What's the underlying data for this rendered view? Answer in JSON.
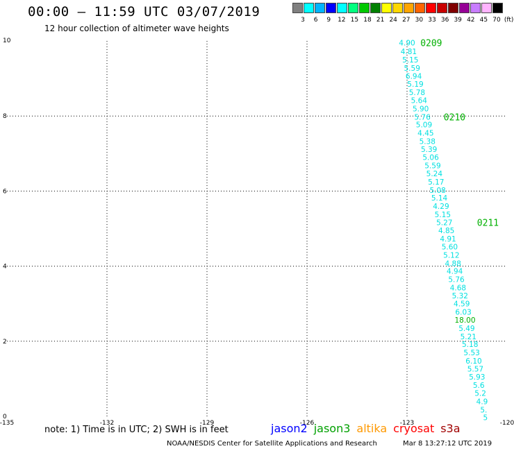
{
  "title": "00:00 – 11:59 UTC 03/07/2019",
  "subtitle": "12 hour collection of altimeter wave heights",
  "color_scale": {
    "unit": "(ft)",
    "colors": [
      "#808080",
      "#00ffff",
      "#00b4ff",
      "#0000ff",
      "#00ffff",
      "#00ff7f",
      "#00c800",
      "#008000",
      "#ffff00",
      "#ffd700",
      "#ffa500",
      "#ff6400",
      "#ff0000",
      "#c80000",
      "#800000",
      "#960096",
      "#c87dff",
      "#ffb4ff",
      "#000000"
    ],
    "labels": [
      "3",
      "6",
      "9",
      "12",
      "15",
      "18",
      "21",
      "24",
      "27",
      "30",
      "33",
      "36",
      "39",
      "42",
      "45",
      "70"
    ]
  },
  "axes": {
    "x_ticks": [
      "-135",
      "-132",
      "-129",
      "-126",
      "-123",
      "-120"
    ],
    "y_ticks": [
      "0",
      "2",
      "4",
      "6",
      "8",
      "10"
    ],
    "x_range": [
      -135,
      -120
    ],
    "y_range": [
      0,
      10
    ]
  },
  "track": {
    "color": "#00e0e0",
    "highlight_color": "#00b000",
    "points": [
      {
        "lat": 9.95,
        "lon": -123.0,
        "v": "4.90"
      },
      {
        "lat": 9.72,
        "lon": -122.95,
        "v": "4.81"
      },
      {
        "lat": 9.5,
        "lon": -122.9,
        "v": "5.15"
      },
      {
        "lat": 9.28,
        "lon": -122.85,
        "v": "5.59"
      },
      {
        "lat": 9.07,
        "lon": -122.8,
        "v": "6.94"
      },
      {
        "lat": 8.85,
        "lon": -122.75,
        "v": "5.19"
      },
      {
        "lat": 8.63,
        "lon": -122.7,
        "v": "5.78"
      },
      {
        "lat": 8.42,
        "lon": -122.64,
        "v": "5.64"
      },
      {
        "lat": 8.2,
        "lon": -122.59,
        "v": "5.90"
      },
      {
        "lat": 7.98,
        "lon": -122.54,
        "v": "5.76"
      },
      {
        "lat": 7.77,
        "lon": -122.49,
        "v": "5.09"
      },
      {
        "lat": 7.55,
        "lon": -122.44,
        "v": "4.45"
      },
      {
        "lat": 7.33,
        "lon": -122.39,
        "v": "5.38"
      },
      {
        "lat": 7.12,
        "lon": -122.34,
        "v": "5.39"
      },
      {
        "lat": 6.9,
        "lon": -122.29,
        "v": "5.06"
      },
      {
        "lat": 6.68,
        "lon": -122.23,
        "v": "5.59"
      },
      {
        "lat": 6.47,
        "lon": -122.18,
        "v": "5.24"
      },
      {
        "lat": 6.25,
        "lon": -122.13,
        "v": "5.17"
      },
      {
        "lat": 6.03,
        "lon": -122.08,
        "v": "5.08"
      },
      {
        "lat": 5.82,
        "lon": -122.03,
        "v": "5.14"
      },
      {
        "lat": 5.6,
        "lon": -121.98,
        "v": "4.29"
      },
      {
        "lat": 5.38,
        "lon": -121.93,
        "v": "5.15"
      },
      {
        "lat": 5.17,
        "lon": -121.88,
        "v": "5.27"
      },
      {
        "lat": 4.95,
        "lon": -121.82,
        "v": "4.85"
      },
      {
        "lat": 4.73,
        "lon": -121.77,
        "v": "4.91"
      },
      {
        "lat": 4.52,
        "lon": -121.72,
        "v": "5.60"
      },
      {
        "lat": 4.3,
        "lon": -121.67,
        "v": "5.12"
      },
      {
        "lat": 4.08,
        "lon": -121.62,
        "v": "4.88"
      },
      {
        "lat": 3.87,
        "lon": -121.57,
        "v": "4.94"
      },
      {
        "lat": 3.65,
        "lon": -121.52,
        "v": "5.76"
      },
      {
        "lat": 3.43,
        "lon": -121.47,
        "v": "4.68"
      },
      {
        "lat": 3.22,
        "lon": -121.41,
        "v": "5.32"
      },
      {
        "lat": 3.0,
        "lon": -121.36,
        "v": "4.59"
      },
      {
        "lat": 2.78,
        "lon": -121.31,
        "v": "6.03"
      },
      {
        "lat": 2.57,
        "lon": -121.26,
        "v": "18.00",
        "hl": true
      },
      {
        "lat": 2.35,
        "lon": -121.21,
        "v": "5.49"
      },
      {
        "lat": 2.13,
        "lon": -121.16,
        "v": "5.21"
      },
      {
        "lat": 1.92,
        "lon": -121.11,
        "v": "5.18"
      },
      {
        "lat": 1.7,
        "lon": -121.06,
        "v": "5.53"
      },
      {
        "lat": 1.48,
        "lon": -121.0,
        "v": "6.10"
      },
      {
        "lat": 1.27,
        "lon": -120.95,
        "v": "5.57"
      },
      {
        "lat": 1.05,
        "lon": -120.9,
        "v": "5.93"
      },
      {
        "lat": 0.83,
        "lon": -120.85,
        "v": "5.6"
      },
      {
        "lat": 0.62,
        "lon": -120.8,
        "v": "5.2"
      },
      {
        "lat": 0.4,
        "lon": -120.75,
        "v": "4.9"
      },
      {
        "lat": 0.18,
        "lon": -120.7,
        "v": "5."
      },
      {
        "lat": -0.03,
        "lon": -120.65,
        "v": "5"
      }
    ],
    "time_labels": [
      {
        "lat": 9.95,
        "lon": -122.6,
        "t": "0209"
      },
      {
        "lat": 7.98,
        "lon": -121.9,
        "t": "0210"
      },
      {
        "lat": 5.17,
        "lon": -120.9,
        "t": "0211"
      }
    ]
  },
  "note": "note: 1) Time is in UTC; 2) SWH is in feet",
  "legend": [
    {
      "name": "jason2",
      "color": "#0000ff"
    },
    {
      "name": "jason3",
      "color": "#00a000"
    },
    {
      "name": "altika",
      "color": "#ff9900"
    },
    {
      "name": "cryosat",
      "color": "#ff0000"
    },
    {
      "name": "s3a",
      "color": "#a00000"
    }
  ],
  "credit": "NOAA/NESDIS Center for Satellite Applications and Research",
  "credit_time": "Mar  8 13:27:12 UTC 2019"
}
